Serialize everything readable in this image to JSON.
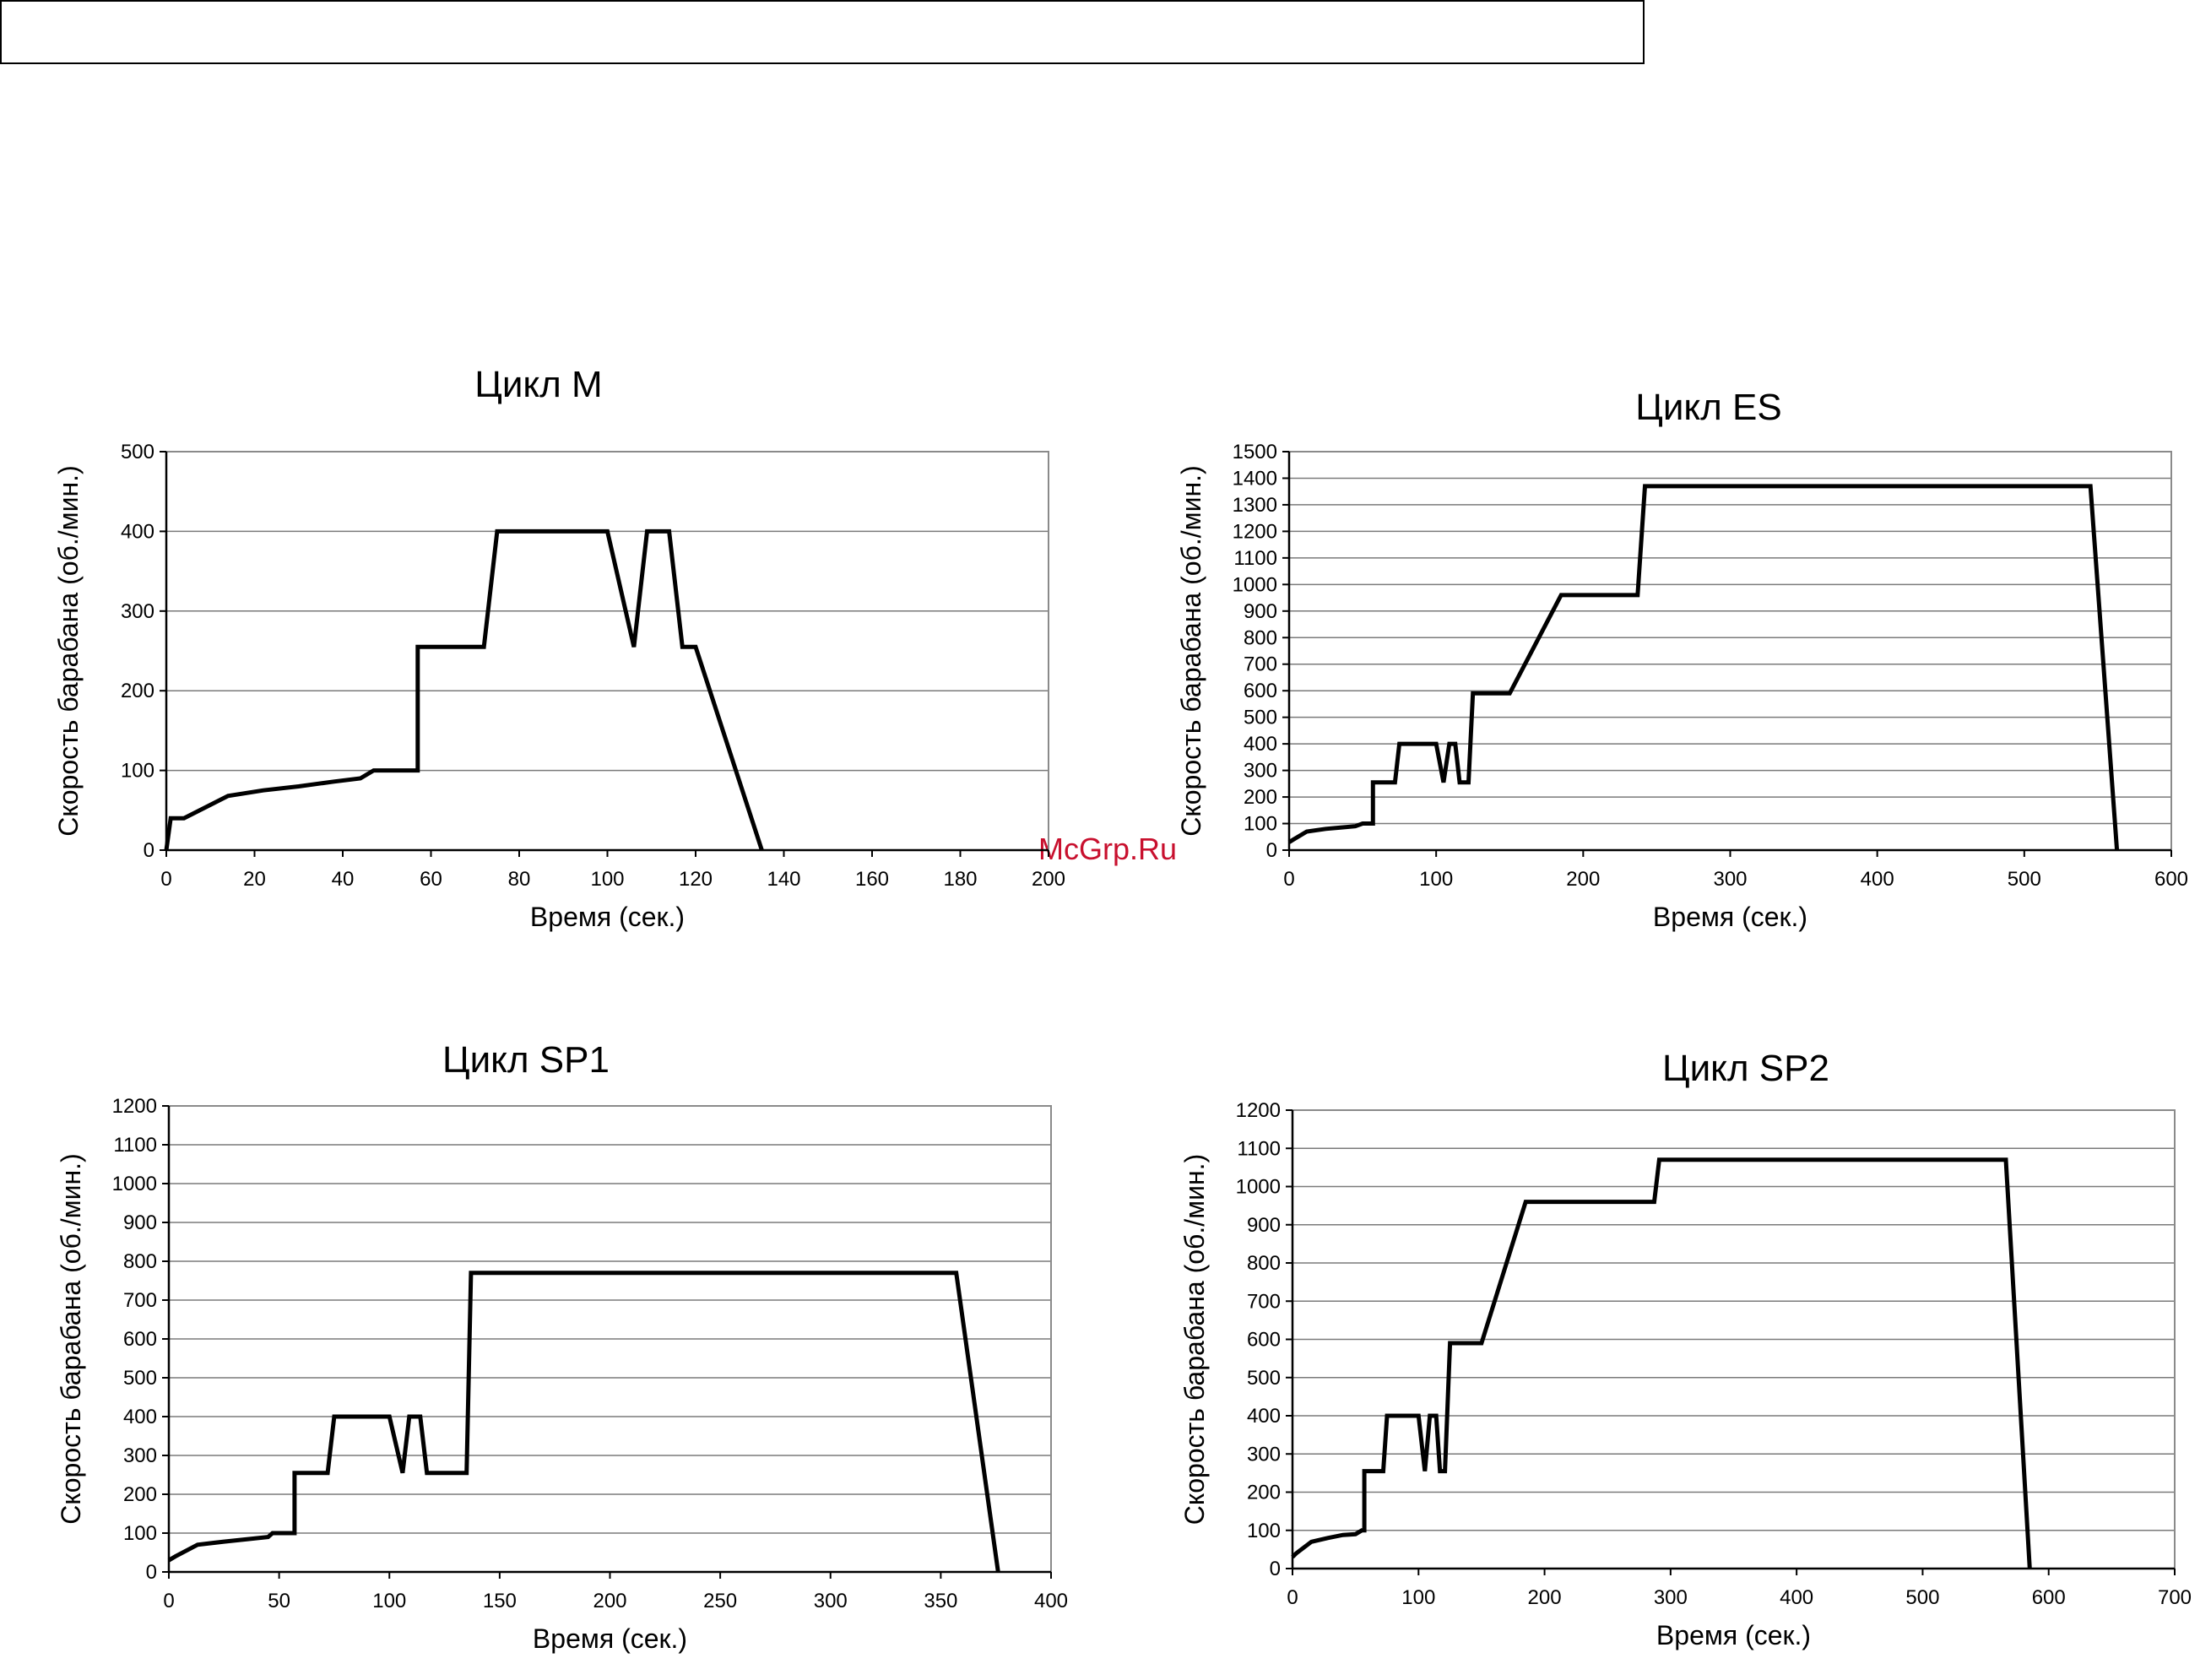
{
  "watermark": "McGrp.Ru",
  "chart_data": [
    {
      "type": "line",
      "title": "Цикл M",
      "xlabel": "Время (сек.)",
      "ylabel": "Скорость барабана (об./мин.)",
      "xlim": [
        0,
        200
      ],
      "ylim": [
        0,
        500
      ],
      "xticks": [
        0,
        20,
        40,
        60,
        80,
        100,
        120,
        140,
        160,
        180,
        200
      ],
      "yticks": [
        0,
        100,
        200,
        300,
        400,
        500
      ],
      "grid": true,
      "series": [
        {
          "x": [
            0,
            1,
            4,
            14,
            22,
            30,
            38,
            44,
            47,
            57,
            57,
            72,
            75,
            100,
            106,
            109,
            114,
            117,
            120,
            135
          ],
          "y": [
            0,
            40,
            40,
            68,
            75,
            80,
            86,
            90,
            100,
            100,
            255,
            255,
            400,
            400,
            255,
            400,
            400,
            255,
            255,
            0
          ]
        }
      ]
    },
    {
      "type": "line",
      "title": "Цикл ES",
      "xlabel": "Время (сек.)",
      "ylabel": "Скорость барабана (об./мин.)",
      "xlim": [
        0,
        600
      ],
      "ylim": [
        0,
        1500
      ],
      "xticks": [
        0,
        100,
        200,
        300,
        400,
        500,
        600
      ],
      "yticks": [
        0,
        100,
        200,
        300,
        400,
        500,
        600,
        700,
        800,
        900,
        1000,
        1100,
        1200,
        1300,
        1400,
        1500
      ],
      "grid": true,
      "series": [
        {
          "x": [
            0,
            3,
            12,
            25,
            35,
            45,
            50,
            57,
            57,
            72,
            75,
            100,
            105,
            109,
            113,
            116,
            119,
            122,
            125,
            150,
            185,
            237,
            242,
            545,
            563
          ],
          "y": [
            30,
            40,
            70,
            80,
            85,
            90,
            100,
            100,
            255,
            255,
            400,
            400,
            255,
            400,
            400,
            255,
            255,
            255,
            590,
            590,
            960,
            960,
            1370,
            1370,
            0
          ]
        }
      ]
    },
    {
      "type": "line",
      "title": "Цикл SP1",
      "xlabel": "Время (сек.)",
      "ylabel": "Скорость барабана (об./мин.)",
      "xlim": [
        0,
        400
      ],
      "ylim": [
        0,
        1200
      ],
      "xticks": [
        0,
        50,
        100,
        150,
        200,
        250,
        300,
        350,
        400
      ],
      "yticks": [
        0,
        100,
        200,
        300,
        400,
        500,
        600,
        700,
        800,
        900,
        1000,
        1100,
        1200
      ],
      "grid": true,
      "series": [
        {
          "x": [
            0,
            3,
            13,
            25,
            35,
            45,
            47,
            57,
            57,
            72,
            75,
            100,
            106,
            109,
            114,
            117,
            135,
            137,
            357,
            376
          ],
          "y": [
            30,
            40,
            70,
            78,
            84,
            90,
            100,
            100,
            255,
            255,
            400,
            400,
            255,
            400,
            400,
            255,
            255,
            770,
            770,
            0
          ]
        }
      ]
    },
    {
      "type": "line",
      "title": "Цикл SP2",
      "xlabel": "Время (сек.)",
      "ylabel": "Скорость барабана (об./мин.)",
      "xlim": [
        0,
        700
      ],
      "ylim": [
        0,
        1200
      ],
      "xticks": [
        0,
        100,
        200,
        300,
        400,
        500,
        600,
        700
      ],
      "yticks": [
        0,
        100,
        200,
        300,
        400,
        500,
        600,
        700,
        800,
        900,
        1000,
        1100,
        1200
      ],
      "grid": true,
      "series": [
        {
          "x": [
            0,
            3,
            15,
            28,
            40,
            50,
            55,
            57,
            57,
            72,
            75,
            100,
            105,
            109,
            114,
            117,
            121,
            125,
            150,
            185,
            287,
            291,
            566,
            585
          ],
          "y": [
            30,
            40,
            70,
            80,
            88,
            90,
            100,
            100,
            255,
            255,
            400,
            400,
            255,
            400,
            400,
            255,
            255,
            590,
            590,
            960,
            960,
            1070,
            1070,
            0
          ]
        }
      ]
    }
  ]
}
